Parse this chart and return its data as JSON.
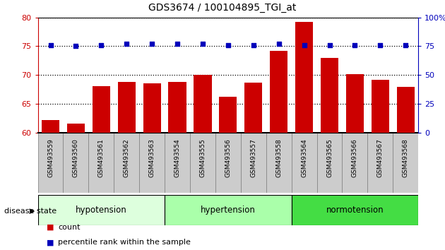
{
  "title": "GDS3674 / 100104895_TGI_at",
  "categories": [
    "GSM493559",
    "GSM493560",
    "GSM493561",
    "GSM493562",
    "GSM493563",
    "GSM493554",
    "GSM493555",
    "GSM493556",
    "GSM493557",
    "GSM493558",
    "GSM493564",
    "GSM493565",
    "GSM493566",
    "GSM493567",
    "GSM493568"
  ],
  "bar_values": [
    62.2,
    61.5,
    68.1,
    68.8,
    68.5,
    68.8,
    70.0,
    66.2,
    68.7,
    74.2,
    79.2,
    73.0,
    70.2,
    69.2,
    67.9
  ],
  "percentile_values": [
    76,
    75,
    76,
    77,
    77,
    77,
    77,
    76,
    76,
    77,
    76,
    76,
    76,
    76,
    76
  ],
  "ylim_left": [
    60,
    80
  ],
  "ylim_right": [
    0,
    100
  ],
  "yticks_left": [
    60,
    65,
    70,
    75,
    80
  ],
  "yticks_right": [
    0,
    25,
    50,
    75,
    100
  ],
  "ytick_right_labels": [
    "0",
    "25",
    "50",
    "75",
    "100%"
  ],
  "bar_color": "#cc0000",
  "percentile_color": "#0000bb",
  "groups": [
    {
      "label": "hypotension",
      "start": 0,
      "end": 5,
      "color": "#ddffdd"
    },
    {
      "label": "hypertension",
      "start": 5,
      "end": 10,
      "color": "#aaffaa"
    },
    {
      "label": "normotension",
      "start": 10,
      "end": 15,
      "color": "#44dd44"
    }
  ],
  "disease_state_label": "disease state",
  "legend_items": [
    {
      "label": "count",
      "color": "#cc0000"
    },
    {
      "label": "percentile rank within the sample",
      "color": "#0000bb"
    }
  ],
  "grid_color": "#000000",
  "background_color": "#ffffff",
  "tick_area_color": "#cccccc",
  "plot_bg_color": "#ffffff"
}
